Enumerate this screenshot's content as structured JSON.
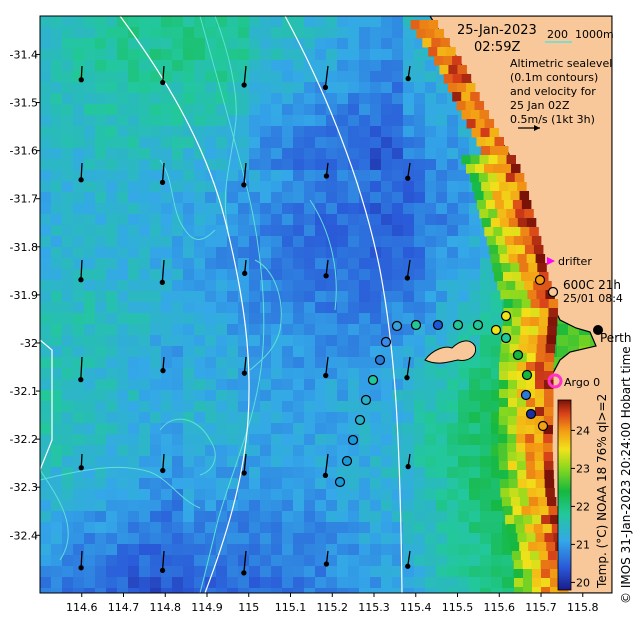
{
  "header": {
    "date": "25-Jan-2023",
    "time": "02:59Z"
  },
  "scale_bar": {
    "value": "200",
    "unit": "1000m"
  },
  "altimetry_note": {
    "lines": [
      "Altimetric sealevel",
      "(0.1m contours)",
      "and velocity for",
      "25 Jan 02Z",
      "0.5m/s (1kt 3h)"
    ]
  },
  "legend": {
    "drifter": "drifter",
    "argo": "Argo 0",
    "perth": "Perth"
  },
  "glider_labels": {
    "line1": "600C 21h",
    "line2": "25/01 08:4"
  },
  "colorbar": {
    "label": "Temp. (°C) NOAA 18 76% ql>=2",
    "ticks": [
      "24",
      "23",
      "22",
      "21",
      "20"
    ],
    "min": 19.8,
    "max": 24.8
  },
  "credit": "© IMOS 31-Jan-2023 20:24:00 Hobart time",
  "axes": {
    "x_ticks": [
      "114.6",
      "114.7",
      "114.8",
      "114.9",
      "115",
      "115.1",
      "115.2",
      "115.3",
      "115.4",
      "115.5",
      "115.6",
      "115.7",
      "115.8"
    ],
    "y_ticks": [
      "-31.4",
      "-31.5",
      "-31.6",
      "-31.7",
      "-31.8",
      "-31.9",
      "-32",
      "-32.1",
      "-32.2",
      "-32.3",
      "-32.4"
    ],
    "lon_range": [
      114.5,
      115.87
    ],
    "lat_range": [
      -32.52,
      -31.32
    ]
  },
  "colors": {
    "land": "#f8c89a",
    "contour": "#5ee0d8",
    "isobath": "#ffffff",
    "drifter": "#ff00ff",
    "argo": "#ff33cc"
  }
}
